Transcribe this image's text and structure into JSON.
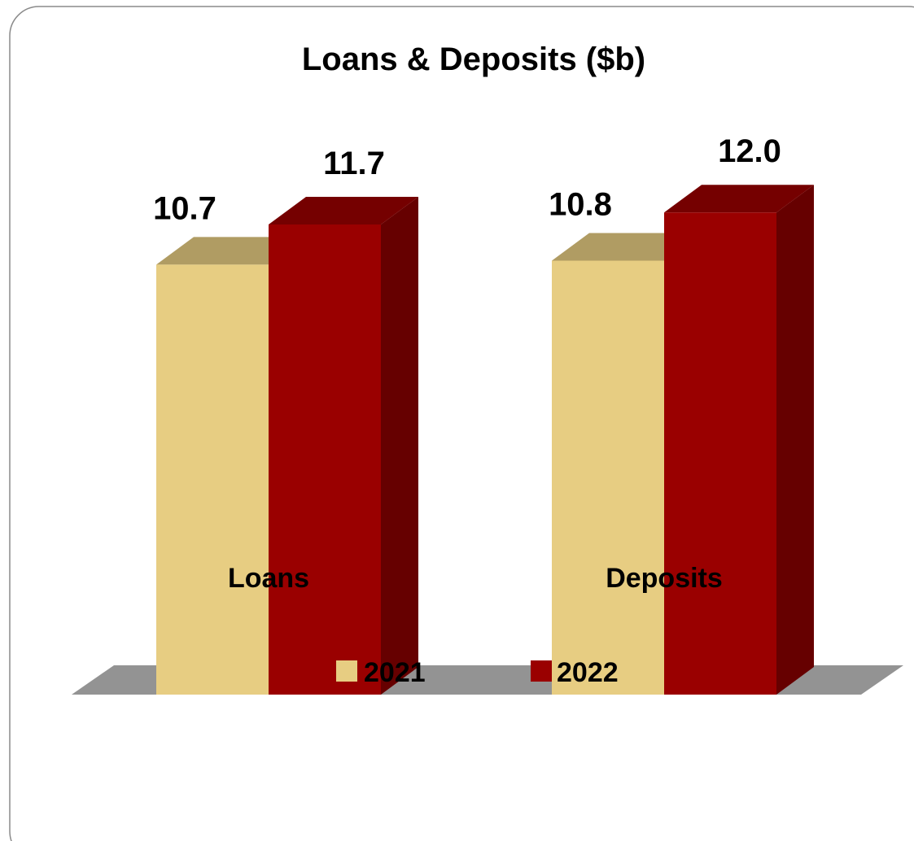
{
  "chart_data": {
    "type": "bar",
    "title": "Loans & Deposits ($b)",
    "categories": [
      "Loans",
      "Deposits"
    ],
    "series": [
      {
        "name": "2021",
        "values": [
          10.7,
          10.8
        ],
        "labels": [
          "10.7",
          "10.8"
        ],
        "color": "#E7CD82"
      },
      {
        "name": "2022",
        "values": [
          11.7,
          12.0
        ],
        "labels": [
          "11.7",
          "12.0"
        ],
        "color": "#9A0000"
      }
    ],
    "ylim": [
      0,
      15
    ],
    "grid": false,
    "legend": "bottom",
    "style": "3d-columns"
  }
}
